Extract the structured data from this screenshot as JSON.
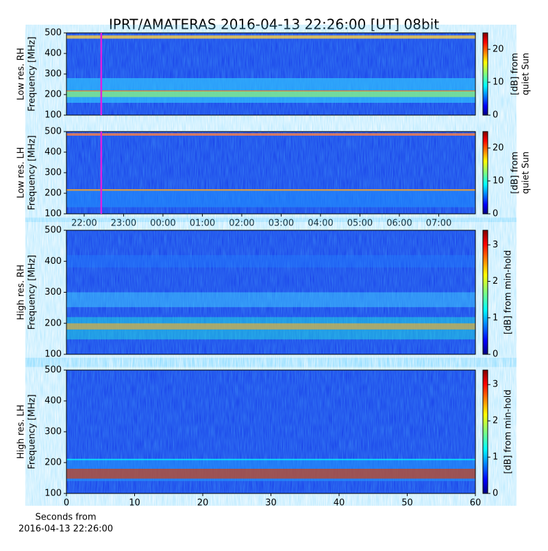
{
  "title": "IPRT/AMATERAS 2016-04-13 22:26:00 [UT]   08bit",
  "chart_data": [
    {
      "type": "heatmap",
      "ylabel": [
        "Low res. RH",
        "Frequency [MHz]"
      ],
      "ylim": [
        100,
        500
      ],
      "yticks": [
        100,
        200,
        300,
        400,
        500
      ],
      "xlim": [
        21.55,
        31.93
      ],
      "cursor": 22.433,
      "cursor_color": "#e020e0",
      "colorbar_label": [
        "[dB] from",
        "quiet Sun"
      ],
      "clim": [
        0,
        25
      ],
      "cticks": [
        0,
        10,
        20
      ]
    },
    {
      "type": "heatmap",
      "ylabel": [
        "Low res. LH",
        "Frequency [MHz]"
      ],
      "ylim": [
        100,
        500
      ],
      "yticks": [
        100,
        200,
        300,
        400,
        500
      ],
      "xlim": [
        21.55,
        31.93
      ],
      "cursor": 22.433,
      "cursor_color": "#e020e0",
      "xticks": [
        {
          "value": 22,
          "label": "22:00"
        },
        {
          "value": 23,
          "label": "23:00"
        },
        {
          "value": 24,
          "label": "00:00"
        },
        {
          "value": 25,
          "label": "01:00"
        },
        {
          "value": 26,
          "label": "02:00"
        },
        {
          "value": 27,
          "label": "03:00"
        },
        {
          "value": 28,
          "label": "04:00"
        },
        {
          "value": 29,
          "label": "05:00"
        },
        {
          "value": 30,
          "label": "06:00"
        },
        {
          "value": 31,
          "label": "07:00"
        }
      ],
      "colorbar_label": [
        "[dB] from",
        "quiet Sun"
      ],
      "clim": [
        0,
        25
      ],
      "cticks": [
        0,
        10,
        20
      ]
    },
    {
      "type": "heatmap",
      "ylabel": [
        "High res. RH",
        "Frequency [MHz]"
      ],
      "ylim": [
        100,
        500
      ],
      "yticks": [
        100,
        200,
        300,
        400,
        500
      ],
      "xlim": [
        0,
        60
      ],
      "colorbar_label": [
        "[dB] from min-hold"
      ],
      "clim": [
        0,
        3.4
      ],
      "cticks": [
        0,
        1,
        2,
        3
      ]
    },
    {
      "type": "heatmap",
      "ylabel": [
        "High res. LH",
        "Frequency [MHz]"
      ],
      "ylim": [
        100,
        500
      ],
      "yticks": [
        100,
        200,
        300,
        400,
        500
      ],
      "xlim": [
        0,
        60
      ],
      "xticks": [
        0,
        10,
        20,
        30,
        40,
        50,
        60
      ],
      "xlabel": [
        "Seconds from",
        "2016-04-13 22:26:00"
      ],
      "colorbar_label": [
        "[dB] from min-hold"
      ],
      "clim": [
        0,
        3.4
      ],
      "cticks": [
        0,
        1,
        2,
        3
      ]
    }
  ]
}
